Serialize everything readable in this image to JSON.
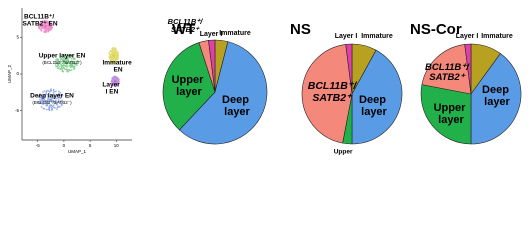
{
  "chart_data": [
    {
      "type": "scatter",
      "x_label": "UMAP_1",
      "y_label": "UMAP_2",
      "xlim": [
        -8,
        13
      ],
      "ylim": [
        -9,
        9
      ],
      "xticks": [
        -5,
        0,
        5,
        10
      ],
      "yticks": [
        -5,
        0,
        5
      ],
      "clusters": [
        {
          "name": "Deep layer EN",
          "subname": "(BCL11B⁺/SATB2⁻)",
          "x": -2.5,
          "y": -3.5,
          "color": "#6f8fe0"
        },
        {
          "name": "Upper layer EN",
          "subname": "(BCL11B⁻/SATB2⁺)",
          "x": 0.5,
          "y": 1.5,
          "color": "#57c26a"
        },
        {
          "name": "BCL11B⁺/ SATB2⁺ EN",
          "x": -3.5,
          "y": 6.5,
          "color": "#e868b8"
        },
        {
          "name": "Immature EN",
          "x": 9.5,
          "y": 2.5,
          "color": "#d8d040"
        },
        {
          "name": "Layer I EN",
          "x": 9.8,
          "y": -1,
          "color": "#b070d8"
        }
      ]
    },
    {
      "type": "pie",
      "title": "WT",
      "categories": [
        "Immature",
        "Deep layer",
        "Upper layer",
        "BCL11B⁺/SATB2⁺",
        "Layer I"
      ],
      "values": [
        4,
        58,
        33,
        3,
        2
      ],
      "colors": [
        "#b8a020",
        "#5a9be6",
        "#22b04a",
        "#f4887a",
        "#e03ea8"
      ]
    },
    {
      "type": "pie",
      "title": "NS",
      "categories": [
        "Immature",
        "Deep layer",
        "Upper layer",
        "BCL11B⁺/SATB2⁺",
        "Layer I"
      ],
      "values": [
        8,
        42,
        3,
        45,
        2
      ],
      "colors": [
        "#b8a020",
        "#5a9be6",
        "#22b04a",
        "#f4887a",
        "#e03ea8"
      ]
    },
    {
      "type": "pie",
      "title": "NS-Cor",
      "categories": [
        "Immature",
        "Deep layer",
        "Upper layer",
        "BCL11B⁺/SATB2⁺",
        "Layer I"
      ],
      "values": [
        10,
        40,
        28,
        20,
        2
      ],
      "colors": [
        "#b8a020",
        "#5a9be6",
        "#22b04a",
        "#f4887a",
        "#e03ea8"
      ]
    }
  ]
}
